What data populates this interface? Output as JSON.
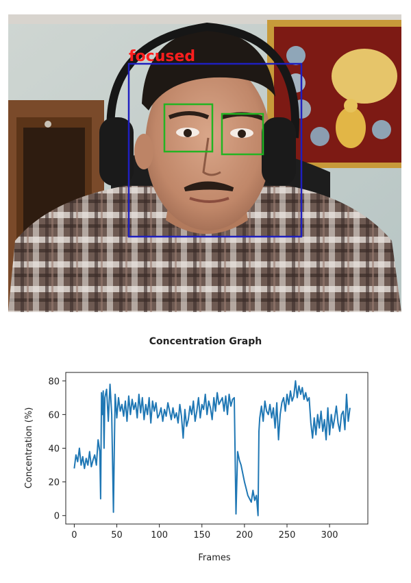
{
  "camera": {
    "status_label": "focused",
    "face_box_color": "#1f1fbf",
    "eye_box_color": "#22b422",
    "status_color": "#ff1e1e"
  },
  "graph": {
    "title": "Concentration Graph"
  },
  "chart_data": {
    "type": "line",
    "title": "Concentration Graph",
    "xlabel": "Frames",
    "ylabel": "Concentration (%)",
    "xlim": [
      -10,
      345
    ],
    "ylim": [
      -5,
      85
    ],
    "xticks": [
      0,
      50,
      100,
      150,
      200,
      250,
      300
    ],
    "yticks": [
      0,
      20,
      40,
      60,
      80
    ],
    "grid": false,
    "line_color": "#1f77b4",
    "series": [
      {
        "x": [
          0,
          2,
          4,
          6,
          8,
          10,
          12,
          14,
          16,
          18,
          20,
          22,
          24,
          26,
          28,
          30,
          31,
          32,
          33,
          34,
          35,
          36,
          38,
          40,
          42,
          44,
          46,
          47,
          48,
          50,
          52,
          54,
          56,
          58,
          60,
          62,
          64,
          66,
          68,
          70,
          72,
          74,
          76,
          78,
          80,
          82,
          84,
          86,
          88,
          90,
          92,
          94,
          96,
          98,
          100,
          102,
          104,
          106,
          108,
          110,
          112,
          114,
          116,
          118,
          120,
          122,
          124,
          126,
          128,
          130,
          132,
          134,
          136,
          138,
          140,
          142,
          144,
          146,
          148,
          150,
          152,
          154,
          156,
          158,
          160,
          162,
          164,
          166,
          168,
          170,
          172,
          174,
          176,
          178,
          180,
          182,
          184,
          186,
          188,
          190,
          192,
          194,
          196,
          198,
          200,
          202,
          204,
          206,
          208,
          210,
          212,
          214,
          216,
          217,
          218,
          220,
          222,
          224,
          226,
          228,
          230,
          232,
          234,
          236,
          238,
          240,
          242,
          244,
          246,
          248,
          250,
          252,
          254,
          256,
          258,
          260,
          262,
          264,
          266,
          268,
          270,
          272,
          274,
          276,
          278,
          280,
          282,
          284,
          286,
          288,
          290,
          292,
          294,
          296,
          298,
          300,
          302,
          304,
          306,
          308,
          310,
          312,
          314,
          316,
          318,
          320,
          322,
          324
        ],
        "values": [
          28,
          36,
          32,
          40,
          30,
          35,
          28,
          34,
          30,
          38,
          29,
          33,
          36,
          30,
          45,
          38,
          10,
          73,
          60,
          74,
          40,
          70,
          75,
          56,
          78,
          60,
          2,
          38,
          72,
          58,
          70,
          62,
          66,
          59,
          68,
          56,
          71,
          60,
          69,
          63,
          67,
          58,
          72,
          61,
          70,
          57,
          66,
          60,
          70,
          55,
          68,
          62,
          67,
          58,
          60,
          64,
          56,
          63,
          59,
          67,
          62,
          57,
          64,
          58,
          61,
          55,
          66,
          59,
          46,
          63,
          53,
          57,
          65,
          60,
          68,
          56,
          62,
          70,
          58,
          66,
          63,
          72,
          60,
          68,
          64,
          57,
          70,
          62,
          73,
          66,
          68,
          70,
          62,
          71,
          60,
          72,
          65,
          69,
          70,
          1,
          38,
          33,
          30,
          25,
          20,
          16,
          12,
          10,
          8,
          15,
          9,
          12,
          0,
          50,
          58,
          65,
          56,
          68,
          62,
          60,
          66,
          58,
          64,
          52,
          67,
          45,
          60,
          67,
          70,
          62,
          72,
          66,
          74,
          68,
          71,
          80,
          70,
          77,
          72,
          76,
          69,
          73,
          68,
          70,
          55,
          46,
          58,
          48,
          60,
          52,
          62,
          50,
          57,
          45,
          64,
          48,
          60,
          52,
          58,
          65,
          55,
          50,
          60,
          62,
          51,
          72,
          56,
          64
        ]
      }
    ]
  }
}
